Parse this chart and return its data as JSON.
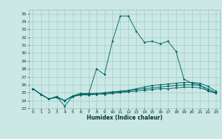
{
  "xlabel": "Humidex (Indice chaleur)",
  "bg_color": "#cce8e4",
  "grid_color": "#99cccc",
  "line_color": "#006666",
  "xlim": [
    -0.5,
    23.5
  ],
  "ylim": [
    23,
    35.5
  ],
  "xticks": [
    0,
    1,
    2,
    3,
    4,
    5,
    6,
    7,
    8,
    9,
    10,
    11,
    12,
    13,
    14,
    15,
    16,
    17,
    18,
    19,
    20,
    21,
    22,
    23
  ],
  "yticks": [
    23,
    24,
    25,
    26,
    27,
    28,
    29,
    30,
    31,
    32,
    33,
    34,
    35
  ],
  "line1": [
    25.5,
    24.8,
    24.2,
    24.5,
    23.3,
    24.5,
    24.8,
    24.8,
    28.0,
    27.3,
    31.5,
    34.7,
    34.7,
    32.8,
    31.4,
    31.5,
    31.2,
    31.5,
    30.2,
    26.7,
    26.2,
    26.0,
    25.2,
    25.0
  ],
  "line2": [
    25.5,
    24.8,
    24.2,
    24.5,
    24.0,
    24.6,
    24.9,
    24.9,
    24.9,
    25.0,
    25.1,
    25.2,
    25.3,
    25.5,
    25.7,
    25.9,
    26.0,
    26.1,
    26.2,
    26.3,
    26.3,
    26.2,
    25.8,
    25.2
  ],
  "line3": [
    25.5,
    24.8,
    24.2,
    24.4,
    24.0,
    24.5,
    24.8,
    24.8,
    24.8,
    24.9,
    25.0,
    25.1,
    25.2,
    25.4,
    25.5,
    25.6,
    25.7,
    25.8,
    25.9,
    26.0,
    26.0,
    25.9,
    25.5,
    25.0
  ],
  "line4": [
    25.5,
    24.8,
    24.2,
    24.4,
    24.0,
    24.5,
    24.7,
    24.7,
    24.8,
    24.8,
    24.9,
    25.0,
    25.1,
    25.2,
    25.3,
    25.4,
    25.5,
    25.5,
    25.6,
    25.7,
    25.7,
    25.6,
    25.3,
    24.9
  ]
}
